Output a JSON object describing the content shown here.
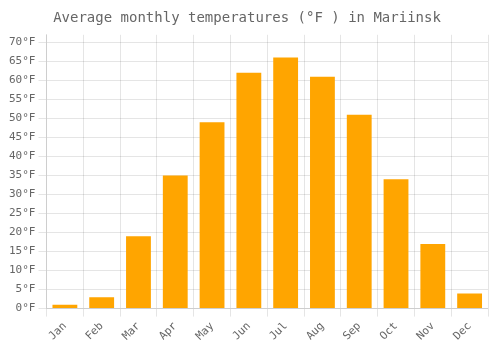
{
  "chart_data": {
    "type": "bar",
    "title": "Average monthly temperatures (°F ) in Mariinsk",
    "categories": [
      "Jan",
      "Feb",
      "Mar",
      "Apr",
      "May",
      "Jun",
      "Jul",
      "Aug",
      "Sep",
      "Oct",
      "Nov",
      "Dec"
    ],
    "values": [
      1,
      3,
      19,
      35,
      49,
      62,
      66,
      61,
      51,
      34,
      17,
      4
    ],
    "color": "#FFA500",
    "ylim": [
      0,
      72
    ],
    "yticks": [
      {
        "value": 0,
        "label": "0°F"
      },
      {
        "value": 5,
        "label": "5°F"
      },
      {
        "value": 10,
        "label": "10°F"
      },
      {
        "value": 15,
        "label": "15°F"
      },
      {
        "value": 20,
        "label": "20°F"
      },
      {
        "value": 25,
        "label": "25°F"
      },
      {
        "value": 30,
        "label": "30°F"
      },
      {
        "value": 35,
        "label": "35°F"
      },
      {
        "value": 40,
        "label": "40°F"
      },
      {
        "value": 45,
        "label": "45°F"
      },
      {
        "value": 50,
        "label": "50°F"
      },
      {
        "value": 55,
        "label": "55°F"
      },
      {
        "value": 60,
        "label": "60°F"
      },
      {
        "value": 65,
        "label": "65°F"
      },
      {
        "value": 70,
        "label": "70°F"
      }
    ],
    "grid": true
  }
}
